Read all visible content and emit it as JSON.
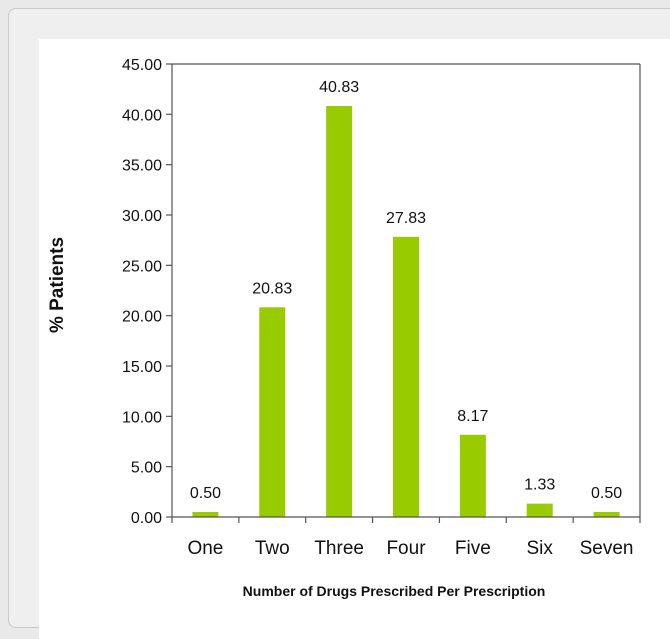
{
  "chart_data": {
    "type": "bar",
    "categories": [
      "One",
      "Two",
      "Three",
      "Four",
      "Five",
      "Six",
      "Seven"
    ],
    "values": [
      0.5,
      20.83,
      40.83,
      27.83,
      8.17,
      1.33,
      0.5
    ],
    "data_labels": [
      "0.50",
      "20.83",
      "40.83",
      "27.83",
      "8.17",
      "1.33",
      "0.50"
    ],
    "y_ticks": [
      "0.00",
      "5.00",
      "10.00",
      "15.00",
      "20.00",
      "25.00",
      "30.00",
      "35.00",
      "40.00",
      "45.00"
    ],
    "ylim": [
      0,
      45
    ],
    "xlabel": "Number of Drugs Prescribed Per Prescription",
    "ylabel": "% Patients",
    "grid": false,
    "legend": "none",
    "colors": {
      "bar": "#99cc00",
      "axis": "#555555"
    }
  }
}
